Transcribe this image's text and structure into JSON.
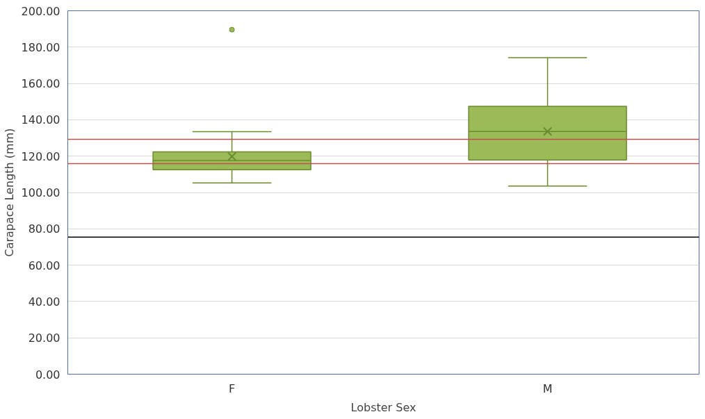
{
  "chart_data": {
    "type": "box",
    "xlabel": "Lobster Sex",
    "ylabel": "Carapace Length (mm)",
    "categories": [
      "F",
      "M"
    ],
    "boxes": [
      {
        "low": 105.3,
        "q1": 112.5,
        "median": 117.6,
        "q3": 122.4,
        "high": 133.5,
        "mean": 119.8,
        "outliers": [
          189.6
        ]
      },
      {
        "low": 103.5,
        "q1": 117.9,
        "median": 133.6,
        "q3": 147.4,
        "high": 174.2,
        "mean": 133.6
      }
    ],
    "color": "#9bbb59",
    "ylim": [
      0,
      200
    ],
    "yticks": [
      {
        "value": 0,
        "label": "0.00"
      },
      {
        "value": 20,
        "label": "20.00"
      },
      {
        "value": 40,
        "label": "40.00"
      },
      {
        "value": 60,
        "label": "60.00"
      },
      {
        "value": 80,
        "label": "80.00"
      },
      {
        "value": 100,
        "label": "100.00"
      },
      {
        "value": 120,
        "label": "120.00"
      },
      {
        "value": 140,
        "label": "140.00"
      },
      {
        "value": 160,
        "label": "160.00"
      },
      {
        "value": 180,
        "label": "180.00"
      },
      {
        "value": 200,
        "label": "200.00"
      }
    ],
    "ref_lines": [
      {
        "axis": "y",
        "value": 75.4,
        "color": "#000000"
      },
      {
        "axis": "y",
        "value": 129.3,
        "color": "#c0504d"
      },
      {
        "axis": "y",
        "value": 115.9,
        "color": "#c0504d"
      }
    ],
    "grid": "y"
  }
}
